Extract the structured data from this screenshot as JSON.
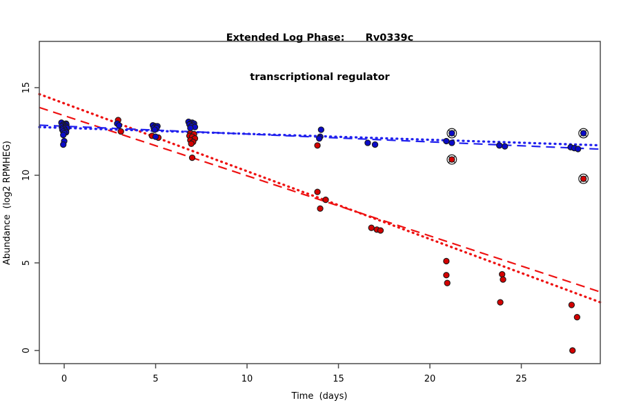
{
  "title": {
    "line1": "Extended Log Phase:      Rv0339c",
    "line2": "transcriptional regulator"
  },
  "axes": {
    "x_label": "Time  (days)",
    "y_label": "Abundance  (log2 RPMHEG)",
    "x_ticks": [
      "0",
      "5",
      "10",
      "15",
      "20",
      "25"
    ],
    "x_tick_values": [
      0,
      5,
      10,
      15,
      20,
      25
    ],
    "y_ticks": [
      "0",
      "5",
      "10",
      "15"
    ],
    "y_tick_values": [
      0,
      5,
      10,
      15
    ]
  },
  "colors": {
    "blue_point": "#0a0ac8",
    "red_point": "#d40000",
    "blue_line": "#2020ee",
    "red_line": "#ee1111",
    "point_stroke": "#1a1a1a",
    "box": "#4a4a4a",
    "marked_ring": "#1a1a1a"
  },
  "chart_data": {
    "type": "scatter",
    "title": "Extended Log Phase: Rv0339c transcriptional regulator",
    "xlabel": "Time  (days)",
    "ylabel": "Abundance  (log2 RPMHEG)",
    "xlim": [
      -1.36,
      29.32
    ],
    "ylim": [
      -0.75,
      17.64
    ],
    "grid": false,
    "legend": "none",
    "series": [
      {
        "name": "red",
        "points": [
          [
            0.0,
            12.6
          ],
          [
            0.1,
            12.5
          ],
          [
            2.95,
            13.15
          ],
          [
            3.1,
            12.5
          ],
          [
            4.8,
            12.25
          ],
          [
            5.15,
            12.15
          ],
          [
            6.9,
            12.4
          ],
          [
            7.1,
            12.35
          ],
          [
            6.85,
            12.25
          ],
          [
            7.0,
            12.2
          ],
          [
            7.15,
            12.1
          ],
          [
            6.9,
            12.0
          ],
          [
            7.05,
            11.9
          ],
          [
            6.95,
            11.8
          ],
          [
            7.0,
            11.0
          ],
          [
            13.85,
            11.7
          ],
          [
            13.85,
            9.05
          ],
          [
            14.3,
            8.6
          ],
          [
            14.0,
            8.1
          ],
          [
            16.8,
            7.0
          ],
          [
            17.1,
            6.9
          ],
          [
            17.3,
            6.85
          ],
          [
            20.9,
            5.1
          ],
          [
            20.9,
            4.3
          ],
          [
            20.95,
            3.85
          ],
          [
            23.95,
            4.35
          ],
          [
            24.0,
            4.05
          ],
          [
            23.85,
            2.75
          ],
          [
            27.75,
            2.6
          ],
          [
            28.05,
            1.9
          ],
          [
            27.8,
            0.0
          ]
        ],
        "marked_points": [
          [
            21.2,
            10.9
          ],
          [
            28.4,
            9.8
          ]
        ]
      },
      {
        "name": "blue",
        "points": [
          [
            -0.15,
            13.0
          ],
          [
            0.1,
            12.95
          ],
          [
            -0.05,
            12.9
          ],
          [
            0.12,
            12.9
          ],
          [
            0.0,
            12.85
          ],
          [
            -0.12,
            12.8
          ],
          [
            0.08,
            12.8
          ],
          [
            0.02,
            12.75
          ],
          [
            -0.08,
            12.7
          ],
          [
            0.15,
            12.7
          ],
          [
            0.0,
            12.65
          ],
          [
            -0.1,
            12.6
          ],
          [
            0.05,
            12.55
          ],
          [
            -0.05,
            12.5
          ],
          [
            0.1,
            12.45
          ],
          [
            0.0,
            12.4
          ],
          [
            -0.05,
            12.3
          ],
          [
            0.0,
            11.95
          ],
          [
            -0.05,
            11.75
          ],
          [
            2.9,
            12.95
          ],
          [
            3.0,
            12.85
          ],
          [
            4.85,
            12.85
          ],
          [
            5.0,
            12.8
          ],
          [
            5.1,
            12.8
          ],
          [
            4.9,
            12.7
          ],
          [
            5.05,
            12.7
          ],
          [
            4.95,
            12.6
          ],
          [
            5.0,
            12.2
          ],
          [
            6.8,
            13.05
          ],
          [
            7.0,
            13.0
          ],
          [
            6.9,
            12.95
          ],
          [
            7.1,
            12.95
          ],
          [
            6.85,
            12.9
          ],
          [
            7.05,
            12.85
          ],
          [
            6.95,
            12.8
          ],
          [
            7.15,
            12.75
          ],
          [
            6.9,
            12.7
          ],
          [
            14.05,
            12.6
          ],
          [
            14.0,
            12.2
          ],
          [
            13.95,
            12.1
          ],
          [
            16.6,
            11.85
          ],
          [
            17.0,
            11.75
          ],
          [
            20.9,
            11.95
          ],
          [
            21.2,
            11.85
          ],
          [
            23.8,
            11.7
          ],
          [
            24.1,
            11.65
          ],
          [
            27.7,
            11.6
          ],
          [
            27.9,
            11.55
          ],
          [
            28.1,
            11.5
          ]
        ],
        "marked_points": [
          [
            21.2,
            12.4
          ],
          [
            28.4,
            12.4
          ]
        ]
      }
    ],
    "trend_lines": [
      {
        "name": "red-longdash",
        "color": "red",
        "style": "longdash",
        "x1": -1.36,
        "y1": 13.87,
        "x2": 29.32,
        "y2": 3.34
      },
      {
        "name": "red-dotted",
        "color": "red",
        "style": "dotted",
        "x1": -1.36,
        "y1": 14.63,
        "x2": 29.32,
        "y2": 2.75
      },
      {
        "name": "blue-longdash",
        "color": "blue",
        "style": "longdash",
        "x1": -1.36,
        "y1": 12.86,
        "x2": 29.32,
        "y2": 11.49
      },
      {
        "name": "blue-dotted",
        "color": "blue",
        "style": "dotted",
        "x1": -1.36,
        "y1": 12.75,
        "x2": 29.32,
        "y2": 11.71
      }
    ]
  }
}
